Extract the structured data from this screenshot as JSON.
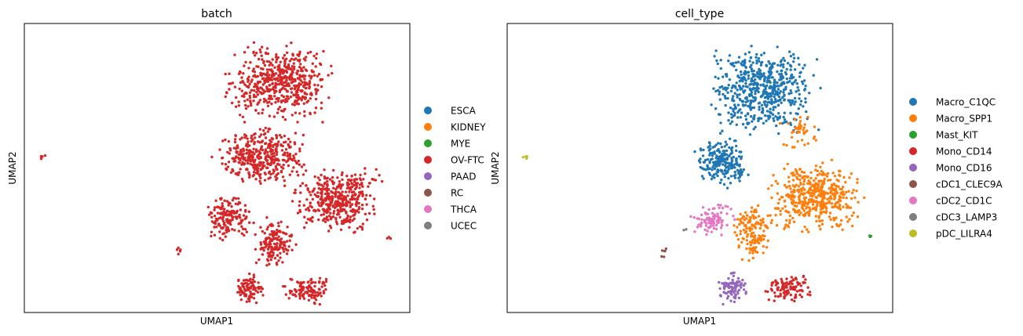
{
  "chart_data": [
    {
      "type": "scatter",
      "title": "batch",
      "xlabel": "UMAP1",
      "ylabel": "UMAP2",
      "xlim": [
        0,
        100
      ],
      "ylim": [
        0,
        100
      ],
      "grid": false,
      "legend_position": "right",
      "legend": [
        {
          "name": "ESCA",
          "color": "#1f77b4"
        },
        {
          "name": "KIDNEY",
          "color": "#ff7f0e"
        },
        {
          "name": "MYE",
          "color": "#2ca02c"
        },
        {
          "name": "OV-FTC",
          "color": "#d62728"
        },
        {
          "name": "PAAD",
          "color": "#9467bd"
        },
        {
          "name": "RC",
          "color": "#8c564b"
        },
        {
          "name": "THCA",
          "color": "#e377c2"
        },
        {
          "name": "UCEC",
          "color": "#7f7f7f"
        }
      ],
      "clusters": [
        {
          "name": "OV-FTC",
          "color": "#d62728",
          "n": 520,
          "x": [
            50,
            82
          ],
          "y": [
            64,
            95
          ]
        },
        {
          "name": "OV-FTC",
          "color": "#d62728",
          "n": 380,
          "x": [
            48,
            76
          ],
          "y": [
            42,
            66
          ]
        },
        {
          "name": "OV-FTC",
          "color": "#d62728",
          "n": 420,
          "x": [
            68,
            94
          ],
          "y": [
            26,
            52
          ]
        },
        {
          "name": "OV-FTC",
          "color": "#d62728",
          "n": 160,
          "x": [
            46,
            60
          ],
          "y": [
            24,
            42
          ]
        },
        {
          "name": "OV-FTC",
          "color": "#d62728",
          "n": 160,
          "x": [
            58,
            72
          ],
          "y": [
            14,
            34
          ]
        },
        {
          "name": "OV-FTC",
          "color": "#d62728",
          "n": 90,
          "x": [
            53,
            63
          ],
          "y": [
            2,
            14
          ]
        },
        {
          "name": "OV-FTC",
          "color": "#d62728",
          "n": 110,
          "x": [
            66,
            81
          ],
          "y": [
            2,
            13
          ]
        },
        {
          "name": "OV-FTC",
          "color": "#d62728",
          "n": 4,
          "x": [
            4,
            5.5
          ],
          "y": [
            53,
            54.5
          ]
        },
        {
          "name": "OV-FTC",
          "color": "#d62728",
          "n": 5,
          "x": [
            39,
            41
          ],
          "y": [
            18,
            24
          ]
        },
        {
          "name": "OV-FTC",
          "color": "#d62728",
          "n": 3,
          "x": [
            93,
            96
          ],
          "y": [
            25,
            27
          ]
        }
      ]
    },
    {
      "type": "scatter",
      "title": "cell_type",
      "xlabel": "UMAP1",
      "ylabel": "UMAP2",
      "xlim": [
        0,
        100
      ],
      "ylim": [
        0,
        100
      ],
      "grid": false,
      "legend_position": "right",
      "legend": [
        {
          "name": "Macro_C1QC",
          "color": "#1f77b4"
        },
        {
          "name": "Macro_SPP1",
          "color": "#ff7f0e"
        },
        {
          "name": "Mast_KIT",
          "color": "#2ca02c"
        },
        {
          "name": "Mono_CD14",
          "color": "#d62728"
        },
        {
          "name": "Mono_CD16",
          "color": "#9467bd"
        },
        {
          "name": "cDC1_CLEC9A",
          "color": "#8c564b"
        },
        {
          "name": "cDC2_CD1C",
          "color": "#e377c2"
        },
        {
          "name": "cDC3_LAMP3",
          "color": "#7f7f7f"
        },
        {
          "name": "pDC_LILRA4",
          "color": "#bcbd22"
        }
      ],
      "clusters": [
        {
          "name": "Macro_C1QC",
          "color": "#1f77b4",
          "n": 560,
          "x": [
            50,
            82
          ],
          "y": [
            60,
            95
          ]
        },
        {
          "name": "Macro_C1QC",
          "color": "#1f77b4",
          "n": 220,
          "x": [
            48,
            64
          ],
          "y": [
            42,
            62
          ]
        },
        {
          "name": "Macro_SPP1",
          "color": "#ff7f0e",
          "n": 460,
          "x": [
            66,
            94
          ],
          "y": [
            26,
            54
          ]
        },
        {
          "name": "Macro_SPP1",
          "color": "#ff7f0e",
          "n": 140,
          "x": [
            58,
            70
          ],
          "y": [
            16,
            40
          ]
        },
        {
          "name": "Macro_SPP1",
          "color": "#ff7f0e",
          "n": 40,
          "x": [
            70,
            82
          ],
          "y": [
            55,
            70
          ]
        },
        {
          "name": "cDC2_CD1C",
          "color": "#e377c2",
          "n": 90,
          "x": [
            47,
            60
          ],
          "y": [
            26,
            38
          ]
        },
        {
          "name": "Mono_CD16",
          "color": "#9467bd",
          "n": 90,
          "x": [
            53,
            64
          ],
          "y": [
            2,
            15
          ]
        },
        {
          "name": "Mono_CD14",
          "color": "#d62728",
          "n": 100,
          "x": [
            66,
            80
          ],
          "y": [
            3,
            14
          ]
        },
        {
          "name": "Mast_KIT",
          "color": "#2ca02c",
          "n": 3,
          "x": [
            93,
            96
          ],
          "y": [
            25,
            27
          ]
        },
        {
          "name": "cDC1_CLEC9A",
          "color": "#8c564b",
          "n": 6,
          "x": [
            39,
            42
          ],
          "y": [
            18,
            24
          ]
        },
        {
          "name": "pDC_LILRA4",
          "color": "#bcbd22",
          "n": 4,
          "x": [
            4,
            5.5
          ],
          "y": [
            53,
            54.5
          ]
        },
        {
          "name": "cDC3_LAMP3",
          "color": "#7f7f7f",
          "n": 2,
          "x": [
            45,
            47
          ],
          "y": [
            28,
            30
          ]
        }
      ]
    }
  ]
}
